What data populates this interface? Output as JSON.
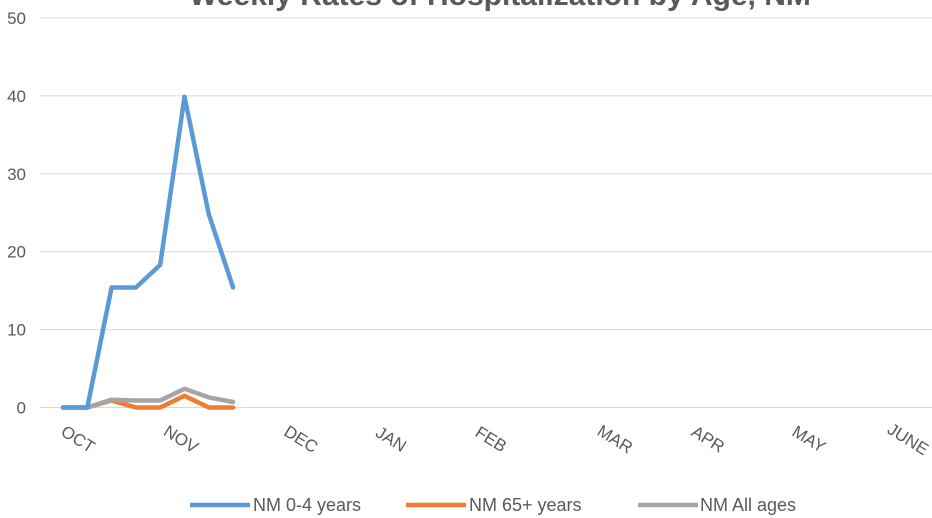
{
  "chart_data": {
    "type": "line",
    "title": "Weekly Rates of Hospitalization by Age, NM",
    "xlabel": "",
    "ylabel": "",
    "ylim": [
      0,
      50
    ],
    "yticks": [
      0,
      10,
      20,
      30,
      40,
      50
    ],
    "grid": true,
    "legend_position": "bottom",
    "month_labels": [
      "OCT",
      "NOV",
      "DEC",
      "JAN",
      "FEB",
      "MAR",
      "APR",
      "MAY",
      "JUNE"
    ],
    "series": [
      {
        "name": "NM 0-4 years",
        "color": "#5b9bd5",
        "values": [
          0,
          0,
          15.4,
          15.4,
          18.3,
          39.9,
          24.8,
          15.4
        ]
      },
      {
        "name": "NM 65+ years",
        "color": "#ed7d31",
        "values": [
          0,
          0,
          0.9,
          0,
          0,
          1.5,
          0,
          0
        ]
      },
      {
        "name": "NM All ages",
        "color": "#a5a5a5",
        "values": [
          0,
          0,
          1.0,
          0.9,
          0.9,
          2.4,
          1.3,
          0.7
        ]
      }
    ]
  }
}
